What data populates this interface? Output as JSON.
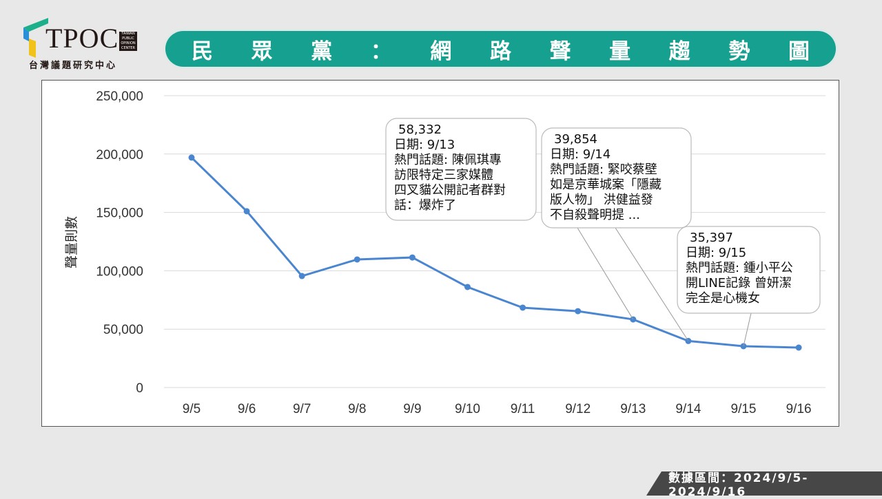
{
  "header": {
    "logo_text": "TPOC",
    "logo_badge": "TAIWAN PUBLIC OPINION CENTER",
    "logo_subtitle": "台灣議題研究中心",
    "title_chars": [
      "民",
      "眾",
      "黨",
      "：",
      "網",
      "路",
      "聲",
      "量",
      "趨",
      "勢",
      "圖"
    ],
    "accent": "#16a090"
  },
  "footer": {
    "label": "數據區間：2024/9/5-2024/9/16"
  },
  "chart_data": {
    "type": "line",
    "title": "",
    "xlabel": "",
    "ylabel": "聲量則數",
    "categories": [
      "9/5",
      "9/6",
      "9/7",
      "9/8",
      "9/9",
      "9/10",
      "9/11",
      "9/12",
      "9/13",
      "9/14",
      "9/15",
      "9/16"
    ],
    "values": [
      197000,
      151000,
      95500,
      109700,
      111400,
      86100,
      68400,
      65400,
      58332,
      39854,
      35397,
      34200
    ],
    "ylim": [
      0,
      250000
    ],
    "yticks": [
      "0",
      "50,000",
      "100,000",
      "150,000",
      "200,000",
      "250,000"
    ],
    "ytick_values": [
      0,
      50000,
      100000,
      150000,
      200000,
      250000
    ],
    "grid": true,
    "line_color": "#4a86d0",
    "annotations": [
      {
        "index": 8,
        "lines": [
          "58,332",
          "日期: 9/13",
          "熱門話題: 陳佩琪專",
          "訪限特定三家媒體",
          "四叉貓公開記者群對",
          "話：爆炸了"
        ]
      },
      {
        "index": 9,
        "lines": [
          "39,854",
          "日期: 9/14",
          "熱門話題: 緊咬蔡壁",
          "如是京華城案「隱藏",
          "版人物」 洪健益發",
          "不自殺聲明提 ..."
        ]
      },
      {
        "index": 10,
        "lines": [
          "35,397",
          "日期: 9/15",
          "熱門話題: 鍾小平公",
          "開LINE記錄 曾妍潔",
          "完全是心機女"
        ]
      }
    ]
  }
}
